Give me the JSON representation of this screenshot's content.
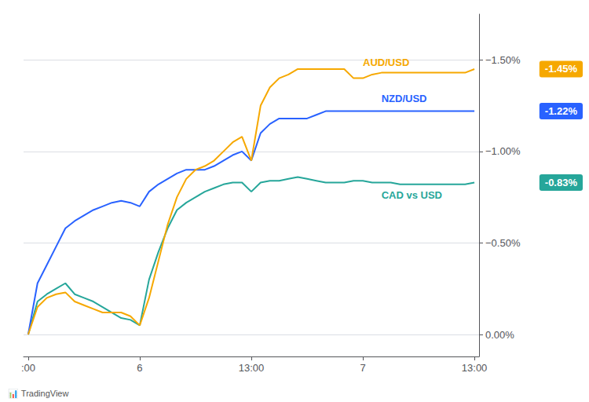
{
  "chart_data": {
    "type": "line",
    "categories": [
      ":00",
      null,
      null,
      null,
      null,
      null,
      null,
      null,
      null,
      null,
      null,
      null,
      "6",
      null,
      null,
      null,
      null,
      null,
      null,
      null,
      null,
      null,
      null,
      null,
      "13:00",
      null,
      null,
      null,
      null,
      null,
      null,
      null,
      null,
      null,
      null,
      null,
      "7",
      null,
      null,
      null,
      null,
      null,
      null,
      null,
      null,
      null,
      null,
      null,
      "13:00"
    ],
    "series": [
      {
        "color": "#26a69a",
        "values": [
          0.0,
          -0.18,
          -0.22,
          -0.25,
          -0.28,
          -0.22,
          -0.2,
          -0.18,
          -0.15,
          -0.12,
          -0.09,
          -0.08,
          -0.05,
          -0.3,
          -0.45,
          -0.58,
          -0.68,
          -0.72,
          -0.75,
          -0.78,
          -0.8,
          -0.82,
          -0.83,
          -0.83,
          -0.78,
          -0.83,
          -0.84,
          -0.84,
          -0.85,
          -0.86,
          -0.85,
          -0.84,
          -0.83,
          -0.83,
          -0.83,
          -0.84,
          -0.84,
          -0.83,
          -0.83,
          -0.83,
          -0.82,
          -0.82,
          -0.82,
          -0.82,
          -0.82,
          -0.82,
          -0.82,
          -0.82,
          -0.83
        ]
      },
      {
        "color": "#2962ff",
        "values": [
          0.0,
          -0.28,
          -0.38,
          -0.48,
          -0.58,
          -0.62,
          -0.65,
          -0.68,
          -0.7,
          -0.72,
          -0.73,
          -0.72,
          -0.7,
          -0.78,
          -0.82,
          -0.85,
          -0.88,
          -0.9,
          -0.9,
          -0.9,
          -0.92,
          -0.95,
          -0.98,
          -1.0,
          -0.95,
          -1.1,
          -1.15,
          -1.18,
          -1.18,
          -1.18,
          -1.18,
          -1.2,
          -1.22,
          -1.22,
          -1.22,
          -1.22,
          -1.22,
          -1.22,
          -1.22,
          -1.22,
          -1.22,
          -1.22,
          -1.22,
          -1.22,
          -1.22,
          -1.22,
          -1.22,
          -1.22,
          -1.22
        ]
      },
      {
        "color": "#f6a800",
        "values": [
          0.0,
          -0.15,
          -0.2,
          -0.22,
          -0.23,
          -0.18,
          -0.16,
          -0.14,
          -0.12,
          -0.12,
          -0.12,
          -0.1,
          -0.05,
          -0.2,
          -0.4,
          -0.6,
          -0.75,
          -0.85,
          -0.9,
          -0.92,
          -0.95,
          -1.0,
          -1.05,
          -1.08,
          -0.95,
          -1.25,
          -1.35,
          -1.4,
          -1.42,
          -1.45,
          -1.45,
          -1.45,
          -1.45,
          -1.45,
          -1.45,
          -1.4,
          -1.4,
          -1.42,
          -1.43,
          -1.43,
          -1.43,
          -1.43,
          -1.43,
          -1.43,
          -1.43,
          -1.43,
          -1.43,
          -1.43,
          -1.45
        ]
      }
    ],
    "ylim": [
      0.12,
      -1.75
    ],
    "yticks": [
      {
        "value": 0.0,
        "label": "0.00%"
      },
      {
        "value": -0.5,
        "label": "−0.50%"
      },
      {
        "value": -1.0,
        "label": "−1.00%"
      },
      {
        "value": -1.5,
        "label": "−1.50%"
      }
    ],
    "grid": true,
    "annotations": [
      {
        "text": "CAD vs USD",
        "x": 38,
        "y": -0.79,
        "color": "#26a69a"
      },
      {
        "text": "NZD/USD",
        "x": 38,
        "y": -1.26,
        "color": "#2962ff"
      },
      {
        "text": "AUD/USD",
        "x": 36,
        "y": -1.46,
        "color": "#f6a800"
      },
      {
        "text": "-0.83%",
        "y": -0.83,
        "color": "#26a69a"
      },
      {
        "text": "-1.22%",
        "y": -1.22,
        "color": "#2962ff"
      },
      {
        "text": "-1.45%",
        "y": -1.45,
        "color": "#f6a800"
      },
      {
        "text": "📊 TradingView"
      }
    ]
  }
}
